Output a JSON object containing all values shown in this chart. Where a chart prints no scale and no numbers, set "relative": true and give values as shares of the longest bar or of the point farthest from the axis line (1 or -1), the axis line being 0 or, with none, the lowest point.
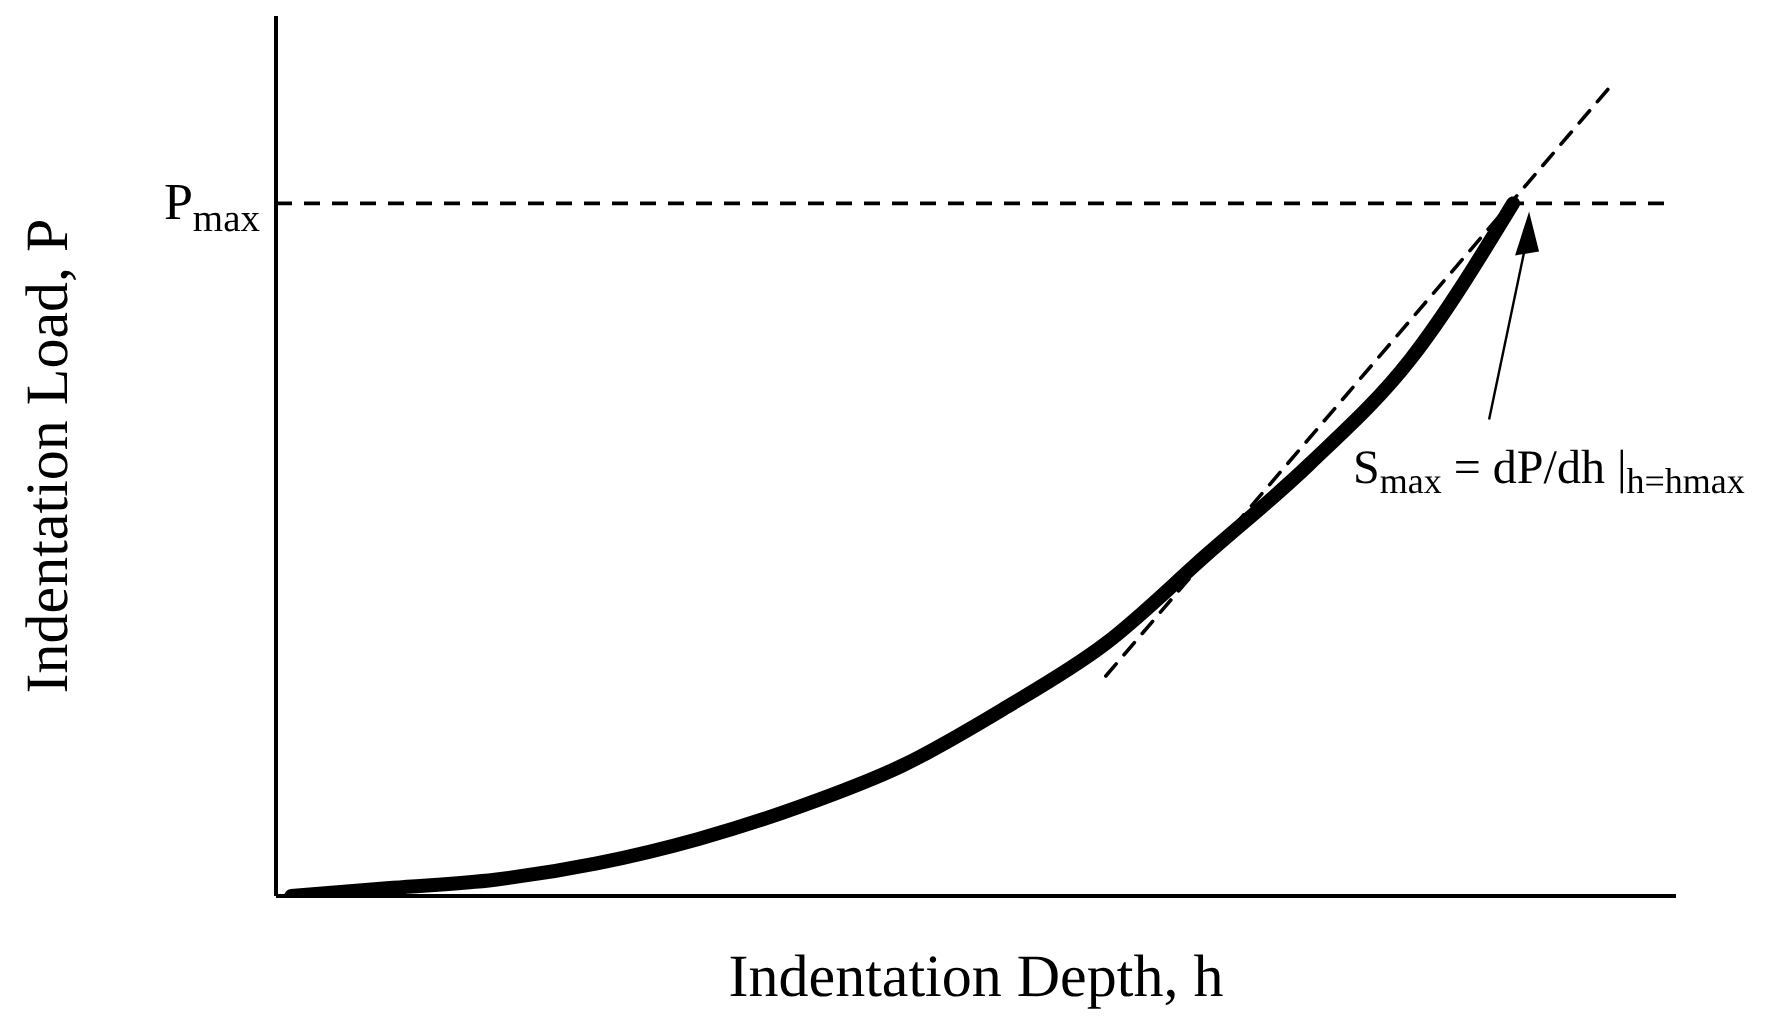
{
  "chart_data": {
    "type": "line",
    "relative": true,
    "xlabel": "Indentation Depth, h",
    "ylabel": "Indentation Load, P",
    "categories": [
      null,
      null,
      null,
      null,
      null,
      null,
      null,
      null,
      null,
      null,
      null,
      null,
      null,
      null
    ],
    "series": [
      {
        "color": "#000000",
        "values": [
          0,
          0.01,
          0.02,
          0.04,
          0.07,
          0.11,
          0.16,
          0.23,
          0.31,
          0.42,
          0.53,
          0.66,
          0.85,
          null
        ]
      },
      {
        "color": "#000000",
        "line_style": "dashed",
        "values": [
          null,
          null,
          null,
          null,
          null,
          null,
          null,
          null,
          0.27,
          null,
          null,
          null,
          null,
          1
        ]
      }
    ],
    "ref_lines": [
      {
        "axis": "y",
        "value": 0.85,
        "label": "P$_{max}$",
        "line_style": "dashed",
        "color": "#000000"
      }
    ],
    "annotations": [
      "S$_{max}$ = dP/dh |$_{h=hmax}$"
    ],
    "grid": false,
    "legend": false,
    "marker": "none"
  }
}
